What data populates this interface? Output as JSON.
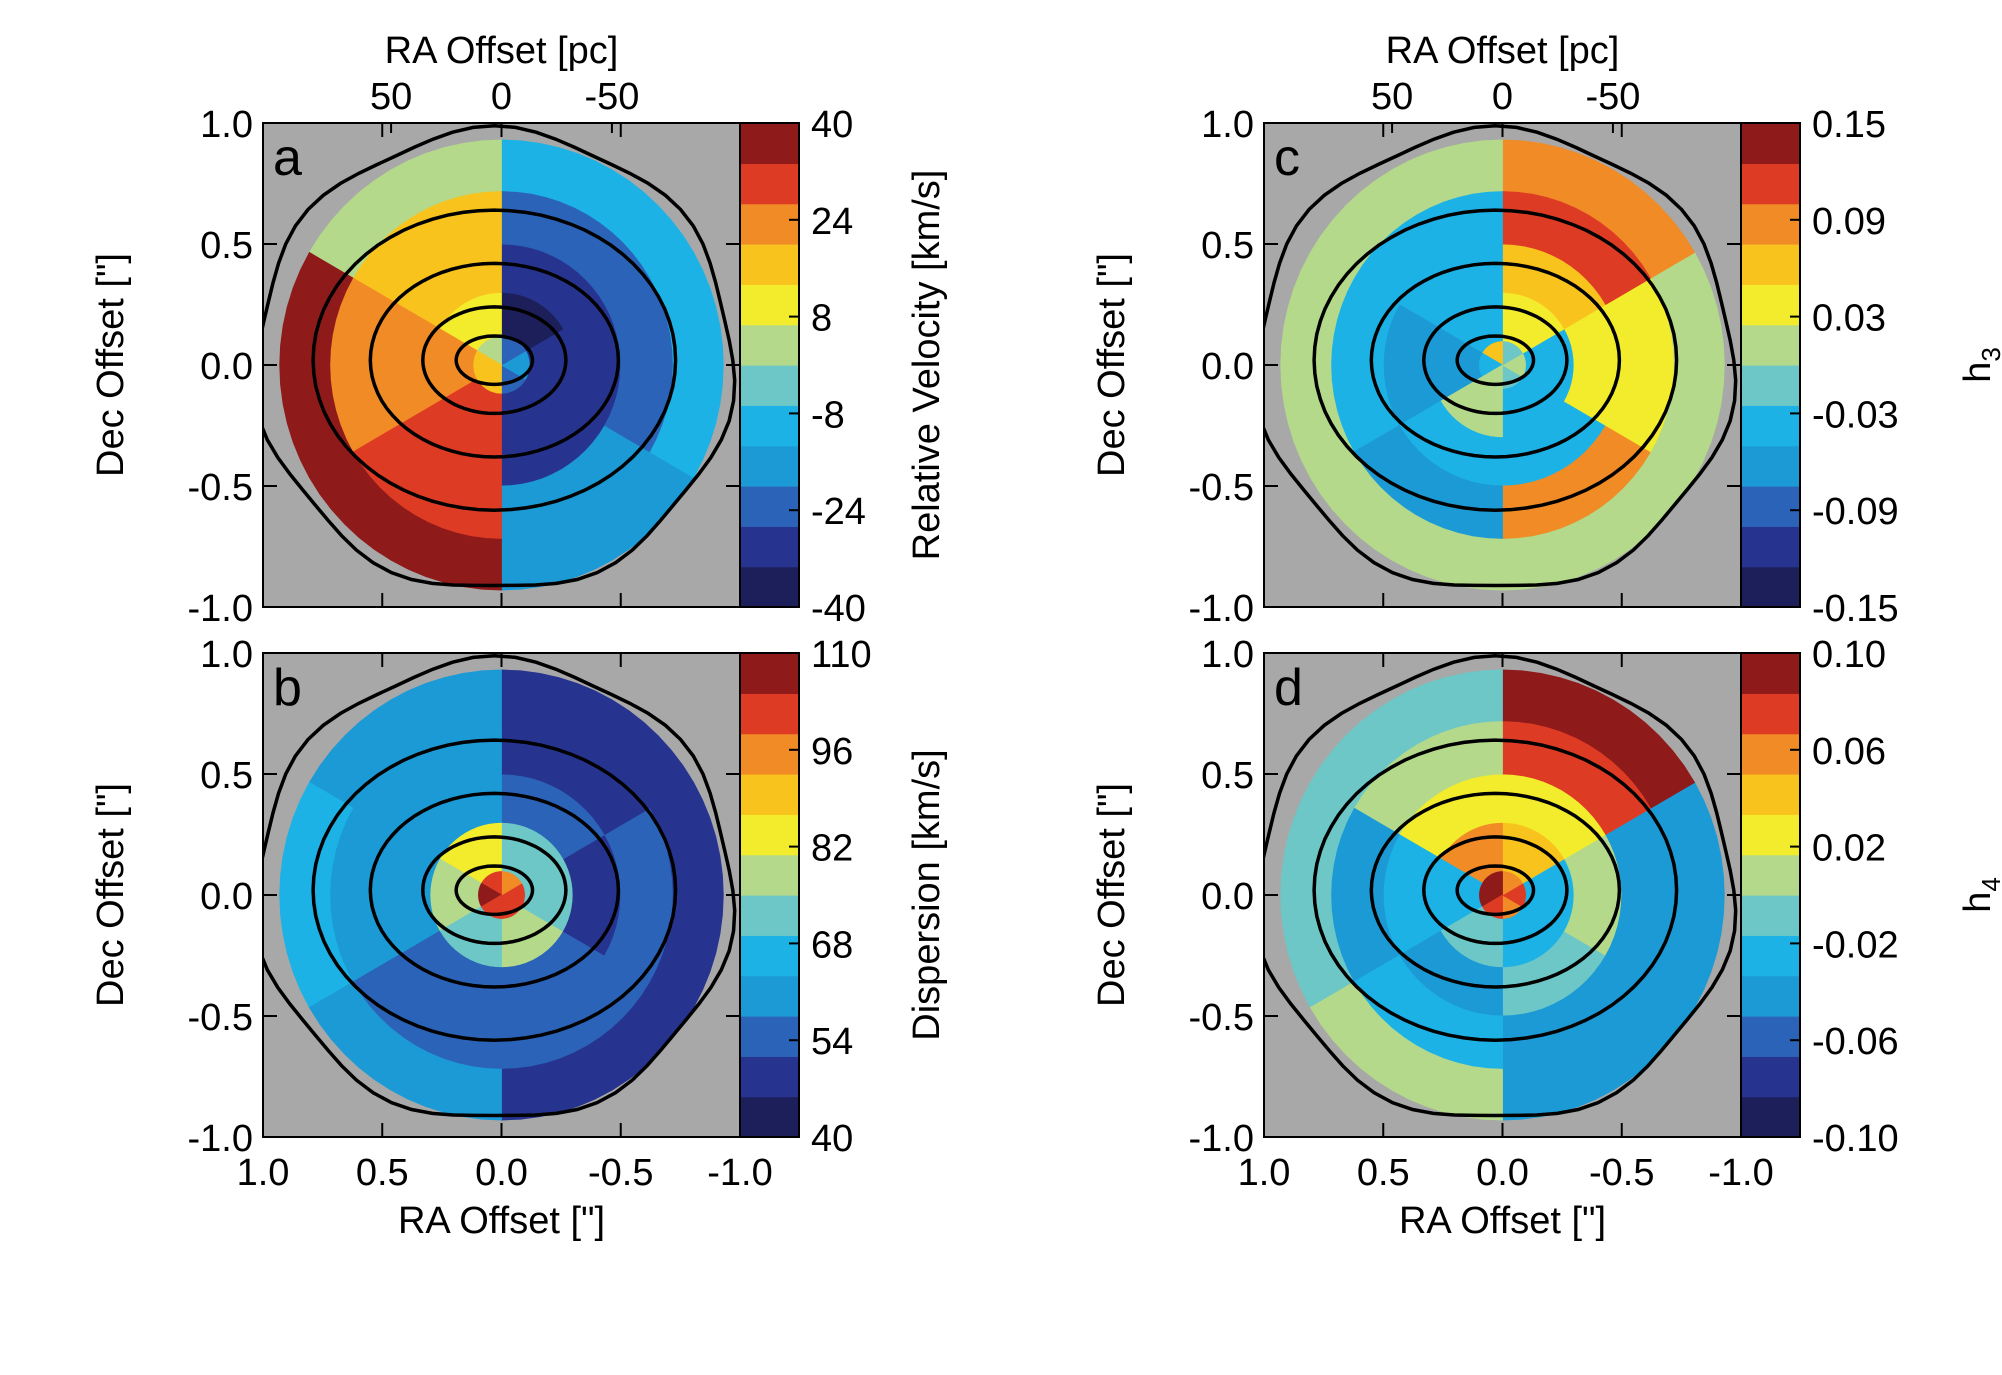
{
  "colormap": [
    "#1c1f5a",
    "#27348f",
    "#2b63b8",
    "#1c9ad6",
    "#1db2e6",
    "#6cc7c6",
    "#b4d98a",
    "#f3ec2c",
    "#f9c31e",
    "#f08b26",
    "#de3b24",
    "#8e1a1a"
  ],
  "background_color": "#a8a8a8",
  "common": {
    "ra_pc_label": "RA Offset [pc]",
    "ra_pc_ticks": [
      "50",
      "0",
      "-50"
    ],
    "ra_arcsec_label": "RA Offset [\"]",
    "ra_arcsec_ticks": [
      "1.0",
      "0.5",
      "0.0",
      "-0.5",
      "-1.0"
    ],
    "dec_label": "Dec Offset [\"]",
    "dec_ticks": [
      "1.0",
      "0.5",
      "0.0",
      "-0.5",
      "-1.0"
    ]
  },
  "chart_data": [
    {
      "type": "heatmap",
      "panel": "a",
      "quantity": "Relative Velocity",
      "colorbar_label": "Relative Velocity [km/s]",
      "colorbar_ticks": [
        "40",
        "24",
        "8",
        "-8",
        "-24",
        "-40"
      ],
      "vrange": [
        -40,
        40
      ],
      "xlim": [
        1.0,
        -1.0
      ],
      "ylim": [
        -1.0,
        1.0
      ],
      "show_top_axis": true,
      "show_bottom_axis": false,
      "bins": {
        "rings": [
          [
            0,
            0.12
          ],
          [
            0.12,
            0.3
          ],
          [
            0.3,
            0.5
          ],
          [
            0.5,
            0.72
          ],
          [
            0.72,
            0.93
          ]
        ],
        "sectors": [
          [
            -25,
            -18,
            -22,
            6,
            14,
            18
          ],
          [
            -30,
            -33,
            -36,
            10,
            22,
            28
          ],
          [
            -28,
            -30,
            -32,
            14,
            26,
            30
          ],
          [
            -18,
            -22,
            -24,
            14,
            24,
            30
          ],
          [
            -14,
            -12,
            -10,
            0,
            34,
            38
          ]
        ]
      },
      "contour_levels": [
        [
          0.16,
          0.1
        ],
        [
          0.3,
          0.22
        ],
        [
          0.52,
          0.4
        ],
        [
          0.76,
          0.62
        ],
        [
          1.0,
          0.95
        ]
      ]
    },
    {
      "type": "heatmap",
      "panel": "b",
      "quantity": "Dispersion",
      "colorbar_label": "Dispersion [km/s]",
      "colorbar_ticks": [
        "110",
        "96",
        "82",
        "68",
        "54",
        "40"
      ],
      "vrange": [
        40,
        110
      ],
      "xlim": [
        1.0,
        -1.0
      ],
      "ylim": [
        -1.0,
        1.0
      ],
      "show_top_axis": false,
      "show_bottom_axis": true,
      "bins": {
        "rings": [
          [
            0,
            0.1
          ],
          [
            0.1,
            0.3
          ],
          [
            0.3,
            0.5
          ],
          [
            0.5,
            0.72
          ],
          [
            0.72,
            0.93
          ]
        ],
        "sectors": [
          [
            104,
            100,
            98,
            102,
            106,
            104
          ],
          [
            80,
            74,
            70,
            84,
            76,
            72
          ],
          [
            52,
            50,
            56,
            62,
            58,
            54
          ],
          [
            56,
            52,
            50,
            58,
            60,
            56
          ],
          [
            50,
            48,
            46,
            58,
            64,
            62
          ]
        ]
      },
      "contour_levels": [
        [
          0.16,
          0.1
        ],
        [
          0.3,
          0.22
        ],
        [
          0.52,
          0.4
        ],
        [
          0.76,
          0.62
        ],
        [
          1.0,
          0.95
        ]
      ]
    },
    {
      "type": "heatmap",
      "panel": "c",
      "quantity": "h3",
      "colorbar_label": "h3",
      "colorbar_ticks": [
        "0.15",
        "0.09",
        "0.03",
        "-0.03",
        "-0.09",
        "-0.15"
      ],
      "vrange": [
        -0.15,
        0.15
      ],
      "xlim": [
        1.0,
        -1.0
      ],
      "ylim": [
        -1.0,
        1.0
      ],
      "show_top_axis": true,
      "show_bottom_axis": false,
      "bins": {
        "rings": [
          [
            0,
            0.1
          ],
          [
            0.1,
            0.3
          ],
          [
            0.3,
            0.5
          ],
          [
            0.5,
            0.72
          ],
          [
            0.72,
            0.93
          ]
        ],
        "sectors": [
          [
            -0.02,
            0.02,
            -0.01,
            0.05,
            -0.03,
            0.0
          ],
          [
            -0.04,
            -0.05,
            0.03,
            -0.05,
            -0.06,
            0.01
          ],
          [
            -0.03,
            0.04,
            0.06,
            -0.04,
            -0.06,
            -0.05
          ],
          [
            0.09,
            0.04,
            0.1,
            -0.03,
            -0.04,
            -0.06
          ],
          [
            0.02,
            0.02,
            0.08,
            0.0,
            0.0,
            0.0
          ]
        ]
      },
      "contour_levels": [
        [
          0.16,
          0.1
        ],
        [
          0.3,
          0.22
        ],
        [
          0.52,
          0.4
        ],
        [
          0.76,
          0.62
        ],
        [
          1.0,
          0.95
        ]
      ]
    },
    {
      "type": "heatmap",
      "panel": "d",
      "quantity": "h4",
      "colorbar_label": "h4",
      "colorbar_ticks": [
        "0.10",
        "0.06",
        "0.02",
        "-0.02",
        "-0.06",
        "-0.10"
      ],
      "vrange": [
        -0.1,
        0.1
      ],
      "xlim": [
        1.0,
        -1.0
      ],
      "ylim": [
        -1.0,
        1.0
      ],
      "show_top_axis": false,
      "show_bottom_axis": true,
      "bins": {
        "rings": [
          [
            0,
            0.1
          ],
          [
            0.1,
            0.3
          ],
          [
            0.3,
            0.5
          ],
          [
            0.5,
            0.72
          ],
          [
            0.72,
            0.93
          ]
        ],
        "sectors": [
          [
            0.06,
            0.07,
            0.05,
            0.09,
            0.1,
            0.08
          ],
          [
            -0.02,
            -0.03,
            0.04,
            0.06,
            -0.03,
            -0.01
          ],
          [
            -0.01,
            0.01,
            0.03,
            0.02,
            -0.03,
            -0.04
          ],
          [
            -0.05,
            -0.04,
            0.08,
            0.0,
            -0.04,
            -0.03
          ],
          [
            -0.05,
            -0.05,
            0.09,
            -0.01,
            -0.01,
            0.01
          ]
        ]
      },
      "contour_levels": [
        [
          0.16,
          0.1
        ],
        [
          0.3,
          0.22
        ],
        [
          0.52,
          0.4
        ],
        [
          0.76,
          0.62
        ],
        [
          1.0,
          0.95
        ]
      ]
    }
  ]
}
